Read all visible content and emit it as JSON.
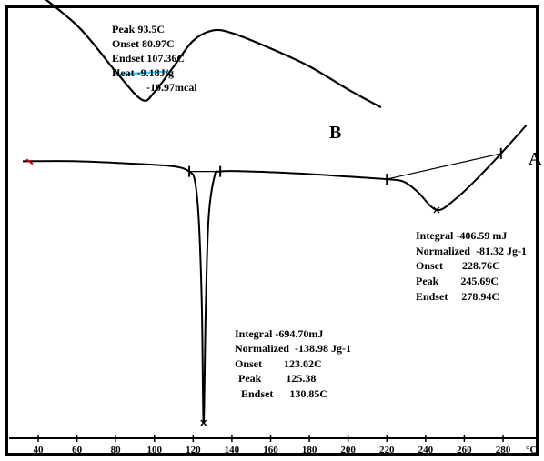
{
  "chart_data": {
    "type": "line",
    "x_axis": {
      "unit": "°C",
      "ticks": [
        "40",
        "60",
        "80",
        "100",
        "120",
        "140",
        "160",
        "180",
        "200",
        "220",
        "240",
        "260",
        "280"
      ],
      "range": [
        30,
        295
      ]
    },
    "series": [
      {
        "name": "A",
        "x": [
          32,
          60,
          90,
          110,
          118,
          121,
          123,
          124.5,
          125.38,
          126.5,
          128,
          131,
          134,
          150,
          180,
          200,
          220,
          228.76,
          236,
          245.69,
          255,
          265,
          278.94,
          292
        ],
        "y": [
          0.02,
          0.02,
          0.01,
          0.0,
          -0.02,
          -0.06,
          -0.22,
          -0.55,
          -1.0,
          -0.55,
          -0.2,
          -0.04,
          -0.02,
          -0.02,
          -0.03,
          -0.04,
          -0.05,
          -0.06,
          -0.1,
          -0.17,
          -0.13,
          -0.06,
          0.05,
          0.16
        ],
        "annotations": {
          "peak_1": {
            "integral": "Integral -694.70mJ",
            "normalized": "Normalized  -138.98 Jg-1",
            "onset": "Onset        123.02C",
            "peak": "Peak         125.38",
            "endset": "Endset      130.85C"
          },
          "peak_2": {
            "integral": "Integral -406.59 mJ",
            "normalized": "Normalized  -81.32 Jg-1",
            "onset": "Onset       228.76C",
            "peak": "Peak        245.69C",
            "endset": "Endset     278.94C"
          }
        }
      },
      {
        "name": "B",
        "x": [
          32,
          60,
          80,
          93.5,
          100,
          110,
          120,
          130,
          140,
          160,
          180,
          200,
          217
        ],
        "y": [
          0.72,
          0.55,
          0.37,
          0.26,
          0.29,
          0.39,
          0.49,
          0.53,
          0.52,
          0.46,
          0.39,
          0.3,
          0.23
        ],
        "baseline": {
          "x1": 80.97,
          "x2": 107.36
        },
        "annotations": {
          "peak": "Peak  93.5C",
          "onset": "Onset 80.97C",
          "endset": "Endset 107.36C",
          "heat_1": "Heat  -9.18J/g",
          "heat_2": "-10.97mcal"
        }
      }
    ],
    "colors": {
      "curve": "#000000",
      "baseline": "#33ccee",
      "start_marker": "#cc0000"
    },
    "legend": "none",
    "grid": false
  }
}
